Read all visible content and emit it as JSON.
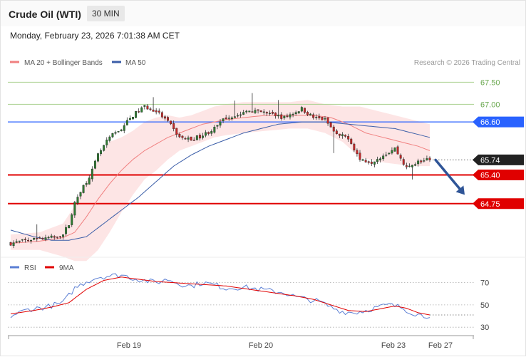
{
  "header": {
    "title": "Crude Oil (WTI)",
    "interval": "30 MIN",
    "timestamp": "Monday, February 23, 2026 7:01:38 AM CET"
  },
  "legend": {
    "ma20": "MA 20 + Bollinger Bands",
    "ma50": "MA 50",
    "credit": "Research © 2026 Trading Central",
    "rsi": "RSI",
    "rsi_ma": "9MA"
  },
  "colors": {
    "ma20": "#f08080",
    "band_fill": "#fde0e0",
    "ma50": "#3b5ea8",
    "resistance_green": "#a9d18e",
    "pivot_blue": "#2962ff",
    "support_red": "#e00000",
    "candle_up": "#2e7d32",
    "candle_down": "#c62828",
    "last_price": "#222222",
    "arrow": "#2f5597",
    "rsi": "#5b7fd4",
    "rsi_ma": "#e00000"
  },
  "chart_data": [
    {
      "type": "candlestick",
      "title": "Crude Oil (WTI)",
      "ylim": [
        63.6,
        67.7
      ],
      "x_ticks": [
        "Feb 19",
        "Feb 20",
        "Feb 23",
        "Feb 27"
      ],
      "levels": [
        {
          "value": 67.5,
          "label": "67.50",
          "kind": "resistance"
        },
        {
          "value": 67.0,
          "label": "67.00",
          "kind": "resistance"
        },
        {
          "value": 66.6,
          "label": "66.60",
          "kind": "pivot"
        },
        {
          "value": 65.74,
          "label": "65.74",
          "kind": "last"
        },
        {
          "value": 65.4,
          "label": "65.40",
          "kind": "support"
        },
        {
          "value": 64.75,
          "label": "64.75",
          "kind": "support"
        }
      ],
      "close_anchors": [
        [
          0,
          63.85
        ],
        [
          8,
          63.95
        ],
        [
          14,
          63.98
        ],
        [
          18,
          64.05
        ],
        [
          20,
          64.3
        ],
        [
          22,
          64.75
        ],
        [
          24,
          65.05
        ],
        [
          26,
          65.25
        ],
        [
          28,
          65.5
        ],
        [
          30,
          65.85
        ],
        [
          32,
          66.05
        ],
        [
          34,
          66.25
        ],
        [
          36,
          66.35
        ],
        [
          38,
          66.45
        ],
        [
          40,
          66.6
        ],
        [
          42,
          66.75
        ],
        [
          46,
          66.95
        ],
        [
          50,
          66.85
        ],
        [
          54,
          66.6
        ],
        [
          58,
          66.25
        ],
        [
          62,
          66.2
        ],
        [
          66,
          66.3
        ],
        [
          70,
          66.45
        ],
        [
          74,
          66.7
        ],
        [
          78,
          66.75
        ],
        [
          82,
          66.85
        ],
        [
          88,
          66.8
        ],
        [
          94,
          66.7
        ],
        [
          100,
          66.9
        ],
        [
          104,
          66.7
        ],
        [
          108,
          66.65
        ],
        [
          112,
          66.3
        ],
        [
          116,
          66.25
        ],
        [
          120,
          65.75
        ],
        [
          124,
          65.7
        ],
        [
          128,
          65.85
        ],
        [
          132,
          66.0
        ],
        [
          136,
          65.55
        ],
        [
          140,
          65.7
        ],
        [
          144,
          65.74
        ]
      ],
      "ma20_anchors": [
        [
          0,
          63.85
        ],
        [
          10,
          63.9
        ],
        [
          18,
          63.98
        ],
        [
          22,
          64.1
        ],
        [
          26,
          64.45
        ],
        [
          30,
          64.85
        ],
        [
          34,
          65.2
        ],
        [
          38,
          65.5
        ],
        [
          42,
          65.75
        ],
        [
          46,
          65.95
        ],
        [
          50,
          66.1
        ],
        [
          54,
          66.25
        ],
        [
          58,
          66.35
        ],
        [
          62,
          66.45
        ],
        [
          66,
          66.55
        ],
        [
          70,
          66.6
        ],
        [
          74,
          66.65
        ],
        [
          80,
          66.7
        ],
        [
          88,
          66.75
        ],
        [
          96,
          66.75
        ],
        [
          104,
          66.75
        ],
        [
          110,
          66.7
        ],
        [
          116,
          66.55
        ],
        [
          122,
          66.35
        ],
        [
          128,
          66.25
        ],
        [
          134,
          66.15
        ],
        [
          140,
          66.05
        ],
        [
          144,
          65.95
        ]
      ],
      "band_anchors": [
        [
          0,
          64.05,
          63.7
        ],
        [
          10,
          64.1,
          63.7
        ],
        [
          18,
          64.3,
          63.55
        ],
        [
          22,
          64.7,
          63.45
        ],
        [
          26,
          65.25,
          63.45
        ],
        [
          30,
          65.75,
          63.7
        ],
        [
          34,
          66.15,
          64.1
        ],
        [
          38,
          66.25,
          64.55
        ],
        [
          42,
          66.4,
          64.95
        ],
        [
          46,
          66.6,
          65.3
        ],
        [
          50,
          66.7,
          65.5
        ],
        [
          54,
          66.75,
          65.75
        ],
        [
          58,
          66.7,
          65.95
        ],
        [
          62,
          66.75,
          66.05
        ],
        [
          66,
          66.85,
          66.15
        ],
        [
          70,
          66.95,
          66.25
        ],
        [
          74,
          67.0,
          66.3
        ],
        [
          80,
          67.05,
          66.35
        ],
        [
          88,
          67.05,
          66.4
        ],
        [
          96,
          67.05,
          66.45
        ],
        [
          102,
          67.1,
          66.45
        ],
        [
          108,
          67.0,
          66.35
        ],
        [
          114,
          66.95,
          66.15
        ],
        [
          120,
          66.95,
          65.8
        ],
        [
          126,
          66.85,
          65.7
        ],
        [
          132,
          66.75,
          65.65
        ],
        [
          138,
          66.65,
          65.6
        ],
        [
          144,
          66.55,
          65.6
        ]
      ],
      "ma50_anchors": [
        [
          0,
          64.15
        ],
        [
          8,
          64.0
        ],
        [
          14,
          63.92
        ],
        [
          20,
          63.92
        ],
        [
          26,
          64.0
        ],
        [
          32,
          64.3
        ],
        [
          38,
          64.6
        ],
        [
          44,
          64.9
        ],
        [
          50,
          65.25
        ],
        [
          56,
          65.6
        ],
        [
          62,
          65.85
        ],
        [
          68,
          66.05
        ],
        [
          74,
          66.2
        ],
        [
          80,
          66.35
        ],
        [
          86,
          66.45
        ],
        [
          92,
          66.55
        ],
        [
          100,
          66.6
        ],
        [
          108,
          66.6
        ],
        [
          116,
          66.55
        ],
        [
          124,
          66.5
        ],
        [
          132,
          66.45
        ],
        [
          138,
          66.35
        ],
        [
          144,
          66.25
        ]
      ],
      "forecast_arrow": {
        "from": [
          145,
          65.74
        ],
        "to": [
          156,
          64.95
        ]
      }
    },
    {
      "type": "line",
      "title": "RSI",
      "ylim": [
        25,
        80
      ],
      "y_ticks": [
        70,
        50,
        30
      ],
      "series": [
        {
          "name": "RSI",
          "anchors": [
            [
              0,
              40
            ],
            [
              6,
              46
            ],
            [
              12,
              48
            ],
            [
              18,
              52
            ],
            [
              22,
              65
            ],
            [
              26,
              71
            ],
            [
              30,
              75
            ],
            [
              34,
              76
            ],
            [
              38,
              77
            ],
            [
              42,
              74
            ],
            [
              46,
              72
            ],
            [
              50,
              70
            ],
            [
              54,
              73
            ],
            [
              58,
              69
            ],
            [
              62,
              67
            ],
            [
              66,
              70
            ],
            [
              70,
              68
            ],
            [
              74,
              65
            ],
            [
              80,
              66
            ],
            [
              88,
              63
            ],
            [
              94,
              61
            ],
            [
              98,
              57
            ],
            [
              102,
              55
            ],
            [
              106,
              53
            ],
            [
              110,
              48
            ],
            [
              114,
              44
            ],
            [
              118,
              43
            ],
            [
              122,
              45
            ],
            [
              126,
              48
            ],
            [
              130,
              50
            ],
            [
              134,
              48
            ],
            [
              138,
              43
            ],
            [
              142,
              40
            ],
            [
              144,
              41
            ]
          ]
        },
        {
          "name": "9MA",
          "anchors": [
            [
              0,
              42
            ],
            [
              8,
              45
            ],
            [
              14,
              48
            ],
            [
              20,
              52
            ],
            [
              26,
              64
            ],
            [
              32,
              72
            ],
            [
              38,
              75
            ],
            [
              44,
              73
            ],
            [
              50,
              71
            ],
            [
              56,
              70
            ],
            [
              62,
              69
            ],
            [
              68,
              68
            ],
            [
              74,
              67
            ],
            [
              82,
              64
            ],
            [
              90,
              61
            ],
            [
              98,
              58
            ],
            [
              104,
              55
            ],
            [
              110,
              50
            ],
            [
              116,
              45
            ],
            [
              122,
              44
            ],
            [
              128,
              47
            ],
            [
              132,
              49
            ],
            [
              136,
              47
            ],
            [
              140,
              43
            ],
            [
              144,
              41
            ]
          ]
        }
      ]
    }
  ]
}
